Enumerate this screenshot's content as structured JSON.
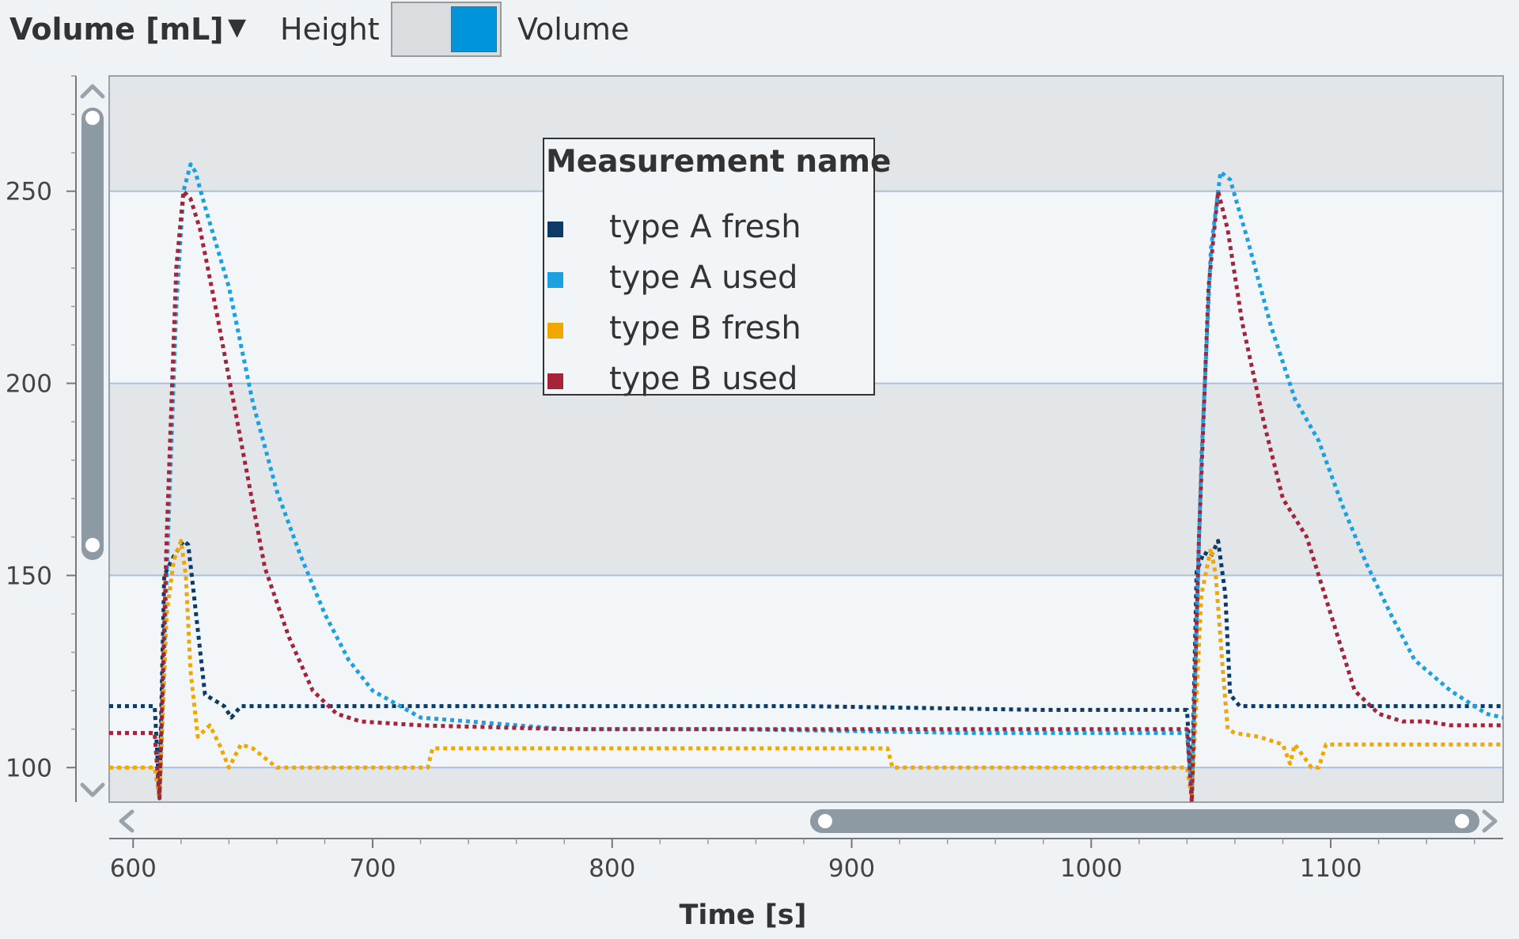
{
  "toolbar": {
    "y_measure_label": "Volume [mL]",
    "toggle_left_label": "Height",
    "toggle_right_label": "Volume",
    "toggle_state": "Volume"
  },
  "legend": {
    "title": "Measurement name",
    "items": [
      {
        "label": "type A fresh",
        "color": "#0d3b66"
      },
      {
        "label": "type A used",
        "color": "#1ba1e2"
      },
      {
        "label": "type B fresh",
        "color": "#f0a800"
      },
      {
        "label": "type B used",
        "color": "#a4243b"
      }
    ]
  },
  "chart_data": {
    "type": "line",
    "title": "",
    "xlabel": "Time [s]",
    "ylabel": "Volume [mL]",
    "xlim": [
      590,
      1172
    ],
    "ylim": [
      91,
      280
    ],
    "x_ticks": [
      "600",
      "700",
      "800",
      "900",
      "1000",
      "1100"
    ],
    "y_ticks": [
      "100",
      "150",
      "200",
      "250"
    ],
    "grid": true,
    "legend_position": "top-center",
    "line_style": "dotted",
    "series": [
      {
        "name": "type A fresh",
        "color": "#0d3b66",
        "x": [
          590,
          609,
          611,
          613,
          617,
          621,
          623,
          625,
          630,
          638,
          641,
          645,
          680,
          780,
          880,
          980,
          1040,
          1042,
          1044,
          1047,
          1050,
          1053,
          1056,
          1058,
          1062,
          1070,
          1090,
          1130,
          1172
        ],
        "y": [
          116,
          116,
          93,
          150,
          155,
          159,
          158,
          147,
          119,
          116,
          113,
          116,
          116,
          116,
          116,
          115,
          115,
          93,
          151,
          156,
          155,
          159,
          145,
          119,
          116,
          116,
          116,
          116,
          116
        ]
      },
      {
        "name": "type A used",
        "color": "#1ba1e2",
        "x": [
          590,
          609,
          611,
          614,
          618,
          621,
          624,
          626,
          630,
          640,
          650,
          660,
          670,
          680,
          690,
          700,
          720,
          780,
          850,
          950,
          1040,
          1042,
          1046,
          1050,
          1054,
          1058,
          1065,
          1075,
          1085,
          1095,
          1105,
          1115,
          1125,
          1135,
          1150,
          1165,
          1172
        ],
        "y": [
          109,
          109,
          92,
          150,
          220,
          250,
          257,
          255,
          246,
          225,
          195,
          172,
          155,
          140,
          128,
          120,
          113,
          110,
          110,
          109,
          109,
          93,
          180,
          235,
          255,
          253,
          238,
          215,
          196,
          185,
          168,
          153,
          140,
          128,
          120,
          114,
          113
        ]
      },
      {
        "name": "type B fresh",
        "color": "#f0a800",
        "x": [
          590,
          609,
          611,
          614,
          617,
          620,
          622,
          624,
          627,
          632,
          636,
          640,
          645,
          650,
          660,
          690,
          723,
          725,
          800,
          915,
          917,
          1000,
          1040,
          1042,
          1046,
          1050,
          1052,
          1055,
          1057,
          1060,
          1070,
          1080,
          1083,
          1085,
          1092,
          1095,
          1098,
          1110,
          1172
        ],
        "y": [
          100,
          100,
          92,
          140,
          154,
          159,
          150,
          125,
          108,
          111,
          106,
          100,
          106,
          105,
          100,
          100,
          100,
          105,
          105,
          105,
          100,
          100,
          100,
          92,
          145,
          157,
          150,
          125,
          110,
          109,
          108,
          106,
          101,
          106,
          100,
          100,
          106,
          106,
          106
        ]
      },
      {
        "name": "type B used",
        "color": "#a4243b",
        "x": [
          590,
          609,
          611,
          614,
          618,
          621,
          624,
          628,
          635,
          645,
          655,
          665,
          675,
          685,
          695,
          720,
          780,
          880,
          1000,
          1040,
          1042,
          1045,
          1049,
          1053,
          1057,
          1063,
          1072,
          1080,
          1090,
          1100,
          1110,
          1120,
          1130,
          1140,
          1150,
          1172
        ],
        "y": [
          109,
          109,
          92,
          160,
          230,
          250,
          248,
          240,
          218,
          185,
          152,
          134,
          120,
          114,
          112,
          111,
          110,
          110,
          110,
          110,
          91,
          160,
          225,
          250,
          240,
          216,
          190,
          170,
          160,
          140,
          120,
          114,
          112,
          112,
          111,
          111
        ]
      }
    ]
  }
}
